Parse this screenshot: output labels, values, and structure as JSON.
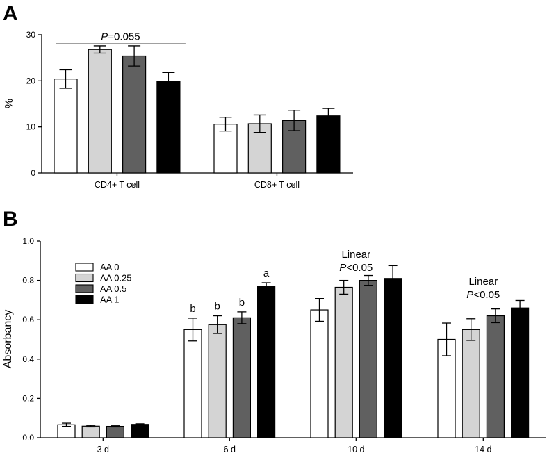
{
  "chart_data": [
    {
      "panel": "A",
      "type": "bar",
      "title": "",
      "xlabel": "",
      "ylabel": "%",
      "ylim": [
        0,
        30
      ],
      "yticks": [
        0,
        10,
        20,
        30
      ],
      "categories": [
        "CD4+ T cell",
        "CD8+ T cell"
      ],
      "series": [
        {
          "color": "#ffffff",
          "values": [
            20.4,
            10.6
          ],
          "errors": [
            2.0,
            1.5
          ]
        },
        {
          "color": "#d4d4d4",
          "values": [
            26.8,
            10.7
          ],
          "errors": [
            0.8,
            1.9
          ]
        },
        {
          "color": "#606060",
          "values": [
            25.4,
            11.4
          ],
          "errors": [
            2.2,
            2.2
          ]
        },
        {
          "color": "#000000",
          "values": [
            19.9,
            12.4
          ],
          "errors": [
            1.9,
            1.6
          ]
        }
      ],
      "annotations": [
        {
          "italic": "P",
          "text": "=0.055",
          "bracket_from": "CD4+ T cell",
          "bar_from": 0,
          "bar_to": 3,
          "y": 28.0
        }
      ]
    },
    {
      "panel": "B",
      "type": "bar",
      "title": "",
      "xlabel": "",
      "ylabel": "Absorbancy",
      "ylim": [
        0,
        1.0
      ],
      "yticks": [
        "0.0",
        "0.2",
        "0.4",
        "0.6",
        "0.8",
        "1.0"
      ],
      "categories": [
        "3 d",
        "6 d",
        "10 d",
        "14 d"
      ],
      "legend_position": "upper-left",
      "series": [
        {
          "name": "AA 0",
          "color": "#ffffff",
          "values": [
            0.066,
            0.55,
            0.65,
            0.5
          ],
          "errors": [
            0.008,
            0.058,
            0.058,
            0.083
          ]
        },
        {
          "name": "AA 0.25",
          "color": "#d4d4d4",
          "values": [
            0.059,
            0.575,
            0.765,
            0.55
          ],
          "errors": [
            0.004,
            0.045,
            0.035,
            0.055
          ]
        },
        {
          "name": "AA 0.5",
          "color": "#606060",
          "values": [
            0.058,
            0.61,
            0.8,
            0.62
          ],
          "errors": [
            0.003,
            0.03,
            0.025,
            0.035
          ]
        },
        {
          "name": "AA 1",
          "color": "#000000",
          "values": [
            0.068,
            0.77,
            0.81,
            0.66
          ],
          "errors": [
            0.003,
            0.018,
            0.065,
            0.038
          ]
        }
      ],
      "bar_letters": [
        {
          "category": "6 d",
          "series": 0,
          "text": "b"
        },
        {
          "category": "6 d",
          "series": 1,
          "text": "b"
        },
        {
          "category": "6 d",
          "series": 2,
          "text": "b"
        },
        {
          "category": "6 d",
          "series": 3,
          "text": "a"
        }
      ],
      "annotations": [
        {
          "category": "10 d",
          "line1": "Linear",
          "italic": "P",
          "text": "<0.05"
        },
        {
          "category": "14 d",
          "line1": "Linear",
          "italic": "P",
          "text": "<0.05"
        }
      ]
    }
  ]
}
